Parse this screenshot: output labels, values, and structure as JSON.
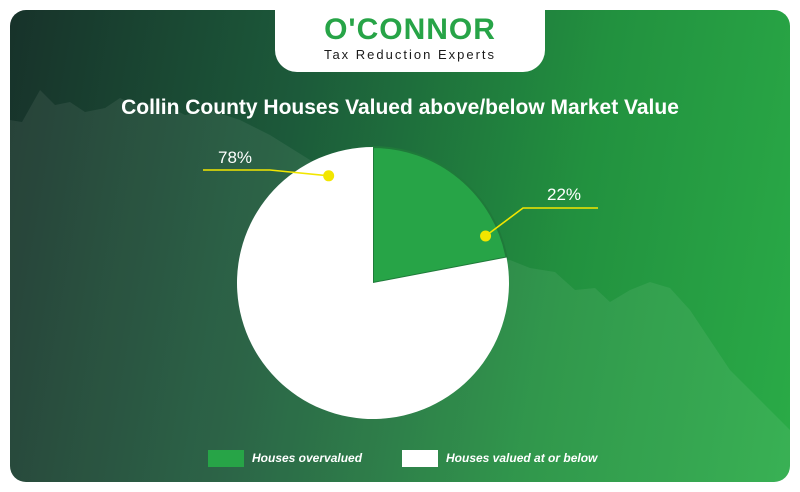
{
  "logo": {
    "name": "O'CONNOR",
    "tagline": "Tax Reduction Experts"
  },
  "colors": {
    "accent_green": "#27a447",
    "callout_yellow": "#f2e600",
    "slice_white": "#ffffff"
  },
  "chart_data": {
    "type": "pie",
    "title": "Collin County Houses Valued above/below Market Value",
    "slices": [
      {
        "label": "Houses overvalued",
        "value": 22,
        "display": "22%",
        "color": "#27a447"
      },
      {
        "label": "Houses valued at or below",
        "value": 78,
        "display": "78%",
        "color": "#ffffff"
      }
    ],
    "legend_position": "bottom"
  }
}
